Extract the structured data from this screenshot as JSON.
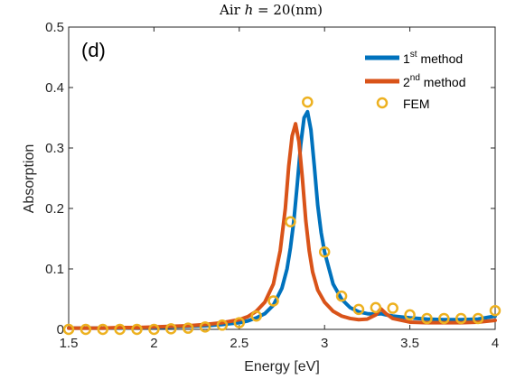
{
  "chart_data": {
    "type": "line",
    "title": {
      "prefix": "Air ",
      "var": "h",
      "rest": " = 20(nm)"
    },
    "panel_label": "(d)",
    "xlabel": "Energy [eV]",
    "ylabel": "Absorption",
    "xlim": [
      1.5,
      4
    ],
    "ylim": [
      0,
      0.5
    ],
    "xticks": [
      1.5,
      2,
      2.5,
      3,
      3.5,
      4
    ],
    "xtick_labels": [
      "1.5",
      "2",
      "2.5",
      "3",
      "3.5",
      "4"
    ],
    "yticks": [
      0,
      0.1,
      0.2,
      0.3,
      0.4,
      0.5
    ],
    "ytick_labels": [
      "0",
      "0.1",
      "0.2",
      "0.3",
      "0.4",
      "0.5"
    ],
    "grid": false,
    "legend_position": "top-right",
    "legend": [
      {
        "base": "1",
        "sup": "st",
        "rest": " method",
        "color": "#0072BD",
        "kind": "line"
      },
      {
        "base": "2",
        "sup": "nd",
        "rest": " method",
        "color": "#D95319",
        "kind": "line"
      },
      {
        "label": "FEM",
        "color": "#EDB120",
        "kind": "marker"
      }
    ],
    "series": [
      {
        "color": "#0072BD",
        "x": [
          1.5,
          1.6,
          1.7,
          1.8,
          1.9,
          2.0,
          2.1,
          2.2,
          2.3,
          2.4,
          2.5,
          2.55,
          2.6,
          2.65,
          2.7,
          2.75,
          2.78,
          2.8,
          2.82,
          2.84,
          2.86,
          2.88,
          2.9,
          2.92,
          2.94,
          2.96,
          2.98,
          3.0,
          3.05,
          3.1,
          3.15,
          3.2,
          3.25,
          3.3,
          3.33,
          3.36,
          3.4,
          3.5,
          3.6,
          3.7,
          3.8,
          3.9,
          4.0
        ],
        "values": [
          0.002,
          0.002,
          0.002,
          0.002,
          0.003,
          0.003,
          0.004,
          0.005,
          0.006,
          0.008,
          0.011,
          0.014,
          0.019,
          0.026,
          0.04,
          0.068,
          0.1,
          0.135,
          0.18,
          0.24,
          0.305,
          0.35,
          0.36,
          0.33,
          0.27,
          0.205,
          0.16,
          0.128,
          0.075,
          0.05,
          0.036,
          0.029,
          0.026,
          0.025,
          0.026,
          0.024,
          0.022,
          0.019,
          0.017,
          0.016,
          0.016,
          0.017,
          0.022
        ]
      },
      {
        "color": "#D95319",
        "x": [
          1.5,
          1.6,
          1.7,
          1.8,
          1.9,
          2.0,
          2.1,
          2.2,
          2.3,
          2.4,
          2.5,
          2.55,
          2.6,
          2.65,
          2.7,
          2.74,
          2.77,
          2.79,
          2.81,
          2.83,
          2.85,
          2.87,
          2.89,
          2.91,
          2.93,
          2.96,
          3.0,
          3.05,
          3.1,
          3.15,
          3.2,
          3.25,
          3.3,
          3.33,
          3.36,
          3.4,
          3.5,
          3.6,
          3.7,
          3.8,
          3.9,
          4.0
        ],
        "values": [
          0.002,
          0.002,
          0.002,
          0.003,
          0.003,
          0.004,
          0.005,
          0.006,
          0.008,
          0.011,
          0.016,
          0.021,
          0.03,
          0.045,
          0.075,
          0.13,
          0.2,
          0.27,
          0.32,
          0.34,
          0.31,
          0.25,
          0.18,
          0.13,
          0.095,
          0.065,
          0.045,
          0.03,
          0.022,
          0.018,
          0.016,
          0.017,
          0.024,
          0.034,
          0.026,
          0.018,
          0.012,
          0.011,
          0.011,
          0.011,
          0.012,
          0.015
        ]
      }
    ],
    "fem_points": {
      "color": "#EDB120",
      "x": [
        1.5,
        1.6,
        1.7,
        1.8,
        1.9,
        2.0,
        2.1,
        2.2,
        2.3,
        2.4,
        2.5,
        2.6,
        2.7,
        2.8,
        2.9,
        3.0,
        3.1,
        3.2,
        3.3,
        3.4,
        3.5,
        3.6,
        3.7,
        3.8,
        3.9,
        4.0
      ],
      "values": [
        0.0,
        0.0,
        0.0,
        0.0,
        0.0,
        0.0,
        0.001,
        0.002,
        0.004,
        0.007,
        0.011,
        0.022,
        0.047,
        0.178,
        0.376,
        0.128,
        0.055,
        0.033,
        0.036,
        0.035,
        0.024,
        0.018,
        0.018,
        0.018,
        0.018,
        0.031
      ]
    }
  }
}
